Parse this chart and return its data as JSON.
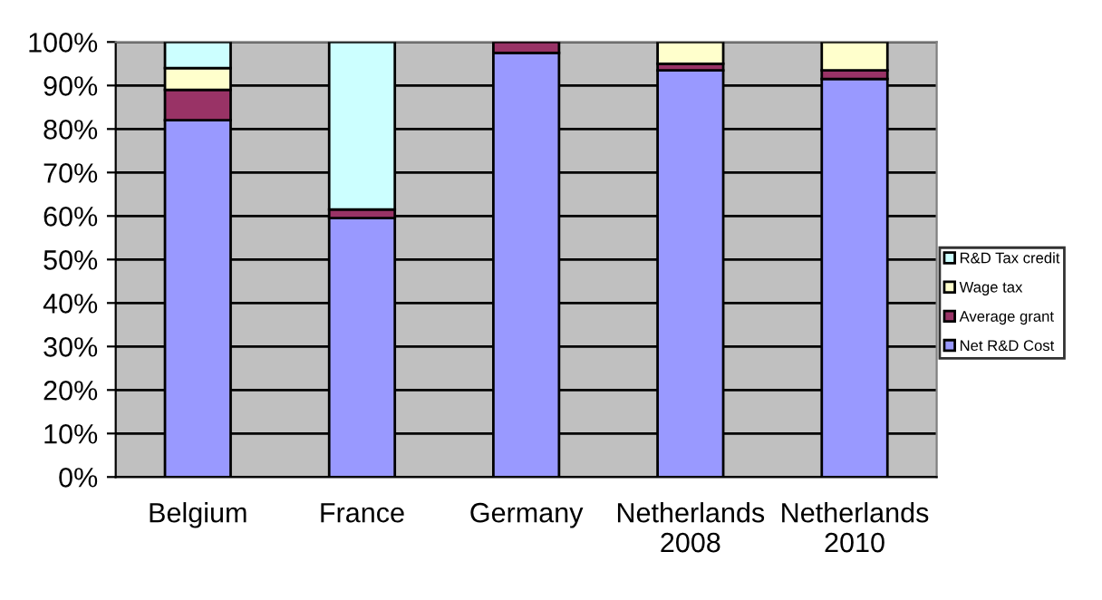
{
  "chart_data": {
    "type": "bar",
    "stacked": true,
    "categories": [
      "Belgium",
      "France",
      "Germany",
      "Netherlands\n2008",
      "Netherlands\n2010"
    ],
    "series": [
      {
        "name": "Net R&D Cost",
        "color": "#9999ff",
        "values": [
          82,
          59.5,
          97.5,
          93.5,
          91.5
        ]
      },
      {
        "name": "Average grant",
        "color": "#993366",
        "values": [
          7,
          2,
          2.5,
          1.5,
          2
        ]
      },
      {
        "name": "Wage tax",
        "color": "#ffffcc",
        "values": [
          5,
          null,
          null,
          5,
          6.5
        ]
      },
      {
        "name": "R&D Tax credit",
        "color": "#ccffff",
        "values": [
          6,
          38.5,
          null,
          null,
          null
        ]
      }
    ],
    "ylim": [
      0,
      100
    ],
    "yticks": [
      {
        "value": 0,
        "label": "0%"
      },
      {
        "value": 10,
        "label": "10%"
      },
      {
        "value": 20,
        "label": "20%"
      },
      {
        "value": 30,
        "label": "30%"
      },
      {
        "value": 40,
        "label": "40%"
      },
      {
        "value": 50,
        "label": "50%"
      },
      {
        "value": 60,
        "label": "60%"
      },
      {
        "value": 70,
        "label": "70%"
      },
      {
        "value": 80,
        "label": "80%"
      },
      {
        "value": 90,
        "label": "90%"
      },
      {
        "value": 100,
        "label": "100%"
      }
    ],
    "grid": "y",
    "legend": "right"
  }
}
